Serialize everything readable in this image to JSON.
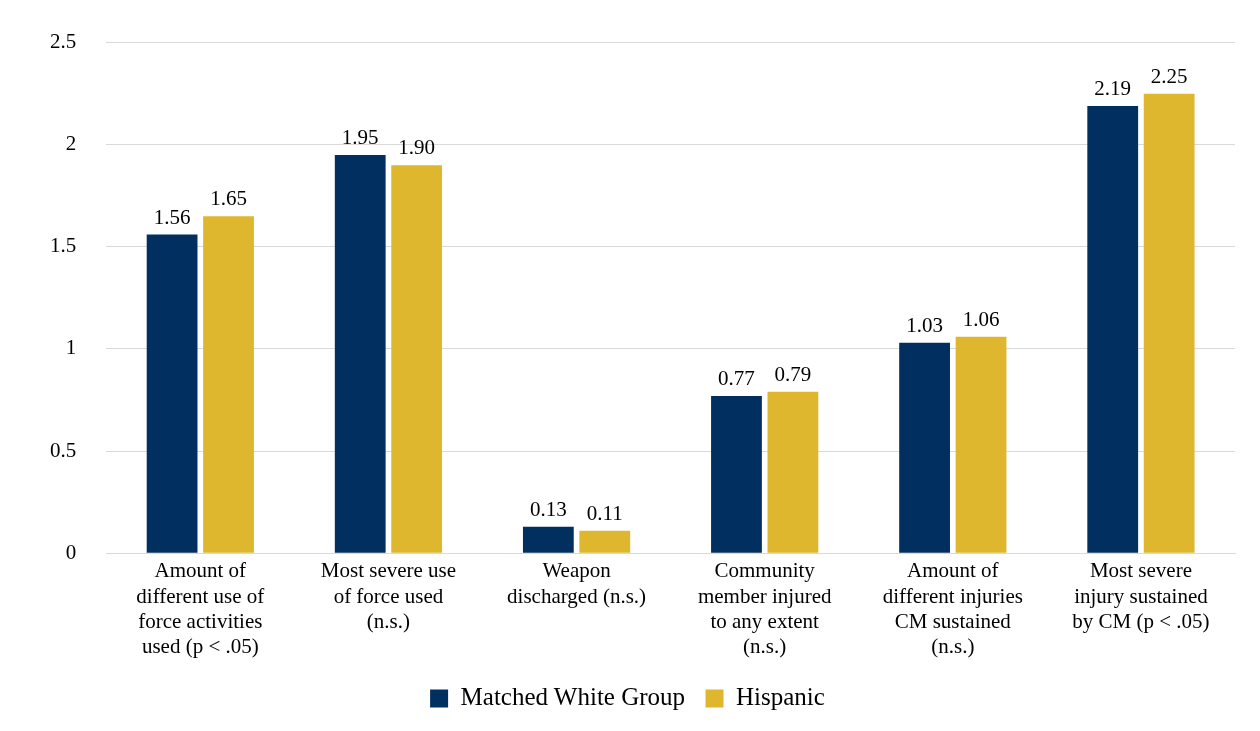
{
  "chart_data": {
    "type": "bar",
    "categories": [
      "Amount of different use of force activities used (p < .05)",
      "Most severe use of force used (n.s.)",
      "Weapon discharged (n.s.)",
      "Community member injured to any extent (n.s.)",
      "Amount of different injuries CM sustained (n.s.)",
      "Most severe injury sustained by CM (p < .05)"
    ],
    "series": [
      {
        "name": "Matched White Group",
        "color": "#002f60",
        "values": [
          1.56,
          1.95,
          0.13,
          0.77,
          1.03,
          2.19
        ],
        "value_labels": [
          "1.56",
          "1.95",
          "0.13",
          "0.77",
          "1.03",
          "2.19"
        ]
      },
      {
        "name": "Hispanic",
        "color": "#dfb72e",
        "values": [
          1.65,
          1.9,
          0.11,
          0.79,
          1.06,
          2.25
        ],
        "value_labels": [
          "1.65",
          "1.90",
          "0.11",
          "0.79",
          "1.06",
          "2.25"
        ]
      }
    ],
    "ylim": [
      0,
      2.5
    ],
    "yticks": [
      0,
      0.5,
      1,
      1.5,
      2,
      2.5
    ],
    "grid": "y",
    "legend": "bottom"
  }
}
